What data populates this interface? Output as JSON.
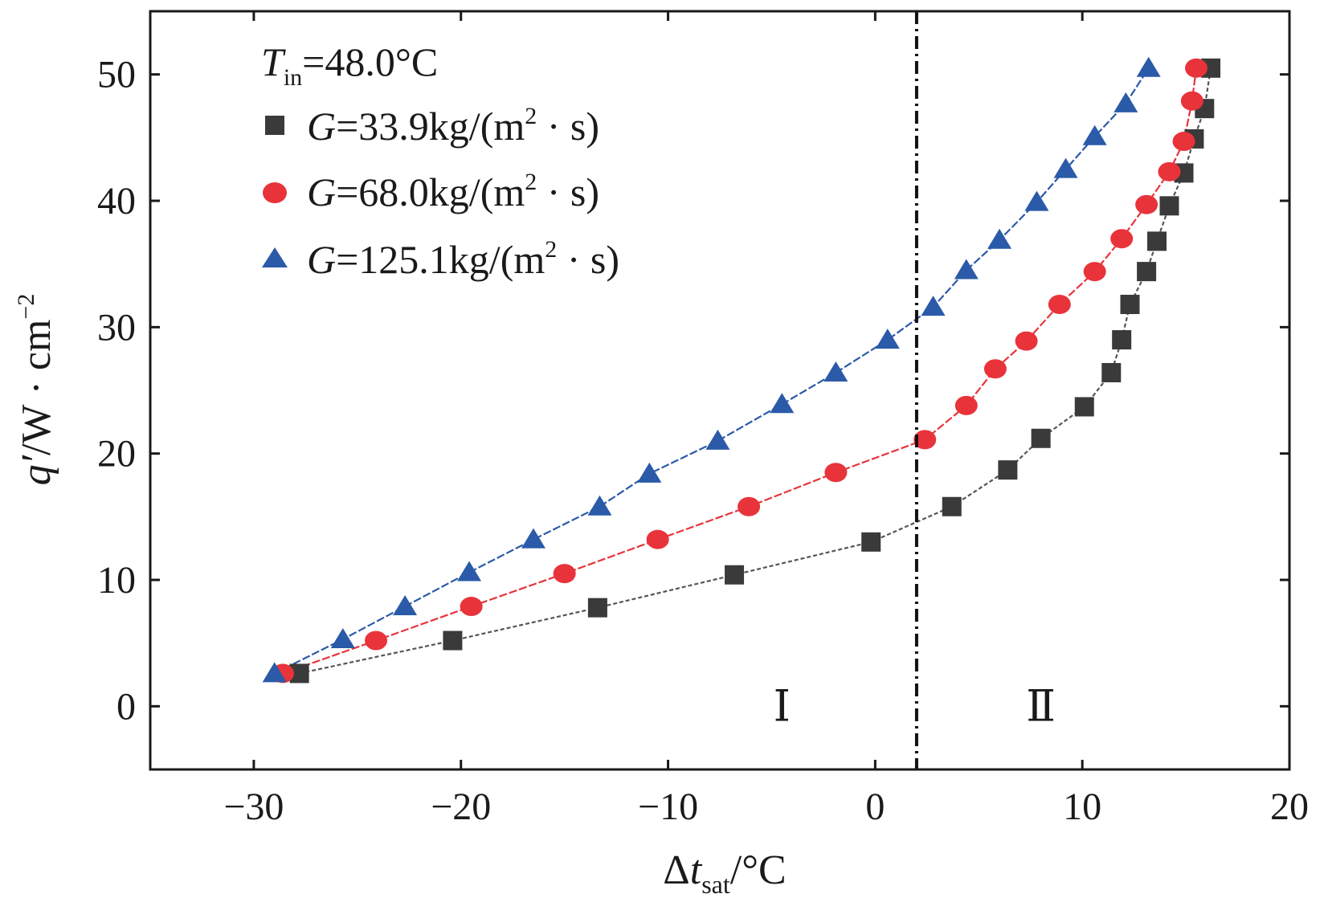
{
  "chart_data": {
    "type": "scatter",
    "title": "",
    "xlabel": {
      "prefix": "Δ",
      "var": "t",
      "sub": "sat",
      "suffix": "/°C"
    },
    "ylabel": {
      "var": "q′",
      "suffix": "/W · cm",
      "sup": "−2"
    },
    "xlim": [
      -35,
      20
    ],
    "ylim": [
      -5,
      55
    ],
    "xticks": [
      -30,
      -20,
      -10,
      0,
      10,
      20
    ],
    "yticks": [
      0,
      10,
      20,
      30,
      40,
      50
    ],
    "xtick_labels": [
      "−30",
      "−20",
      "−10",
      "0",
      "10",
      "20"
    ],
    "ytick_labels": [
      "0",
      "10",
      "20",
      "30",
      "40",
      "50"
    ],
    "divider_x": 2.0,
    "regions": [
      {
        "label": "Ⅰ",
        "x": -4.5,
        "y": 0
      },
      {
        "label": "Ⅱ",
        "x": 8.0,
        "y": 0
      }
    ],
    "legend": {
      "position": "top-left",
      "header": {
        "var": "T",
        "sub": "in",
        "value": "=48.0°C"
      }
    },
    "series": [
      {
        "name": "G=33.9kg/(m² · s)",
        "legend": {
          "var": "G",
          "value": "=33.9kg/(m",
          "sup": "2",
          "tail": " · s)"
        },
        "marker": "square",
        "color": "#3a3a3a",
        "line_color": "#555555",
        "x": [
          -27.8,
          -20.4,
          -13.4,
          -6.8,
          -0.2,
          3.7,
          6.4,
          8.0,
          10.1,
          11.4,
          11.9,
          12.3,
          13.1,
          13.6,
          14.2,
          14.9,
          15.4,
          15.9,
          16.2
        ],
        "y": [
          2.6,
          5.2,
          7.8,
          10.4,
          13.0,
          15.8,
          18.7,
          21.2,
          23.7,
          26.4,
          29.0,
          31.8,
          34.4,
          36.8,
          39.6,
          42.2,
          44.9,
          47.3,
          50.5
        ]
      },
      {
        "name": "G=68.0kg/(m² · s)",
        "legend": {
          "var": "G",
          "value": "=68.0kg/(m",
          "sup": "2",
          "tail": " · s)"
        },
        "marker": "circle",
        "color": "#e8333b",
        "line_color": "#e8333b",
        "x": [
          -28.6,
          -24.1,
          -19.5,
          -15.0,
          -10.5,
          -6.1,
          -1.9,
          2.4,
          4.4,
          5.8,
          7.3,
          8.9,
          10.6,
          11.9,
          13.1,
          14.2,
          14.9,
          15.3,
          15.5
        ],
        "y": [
          2.6,
          5.2,
          7.9,
          10.5,
          13.2,
          15.8,
          18.5,
          21.1,
          23.8,
          26.7,
          28.9,
          31.8,
          34.4,
          37.0,
          39.7,
          42.3,
          44.7,
          47.9,
          50.5
        ]
      },
      {
        "name": "G=125.1kg/(m² · s)",
        "legend": {
          "var": "G",
          "value": "=125.1kg/(m",
          "sup": "2",
          "tail": " · s)"
        },
        "marker": "triangle",
        "color": "#2b5aa8",
        "line_color": "#2b5aa8",
        "x": [
          -29.0,
          -25.7,
          -22.7,
          -19.6,
          -16.5,
          -13.3,
          -10.9,
          -7.6,
          -4.5,
          -1.9,
          0.6,
          2.8,
          4.4,
          6.0,
          7.8,
          9.2,
          10.6,
          12.1,
          13.2
        ],
        "y": [
          2.6,
          5.3,
          7.9,
          10.6,
          13.2,
          15.8,
          18.4,
          21.0,
          23.9,
          26.4,
          29.0,
          31.6,
          34.5,
          36.9,
          39.9,
          42.5,
          45.1,
          47.7,
          50.5
        ]
      }
    ]
  }
}
